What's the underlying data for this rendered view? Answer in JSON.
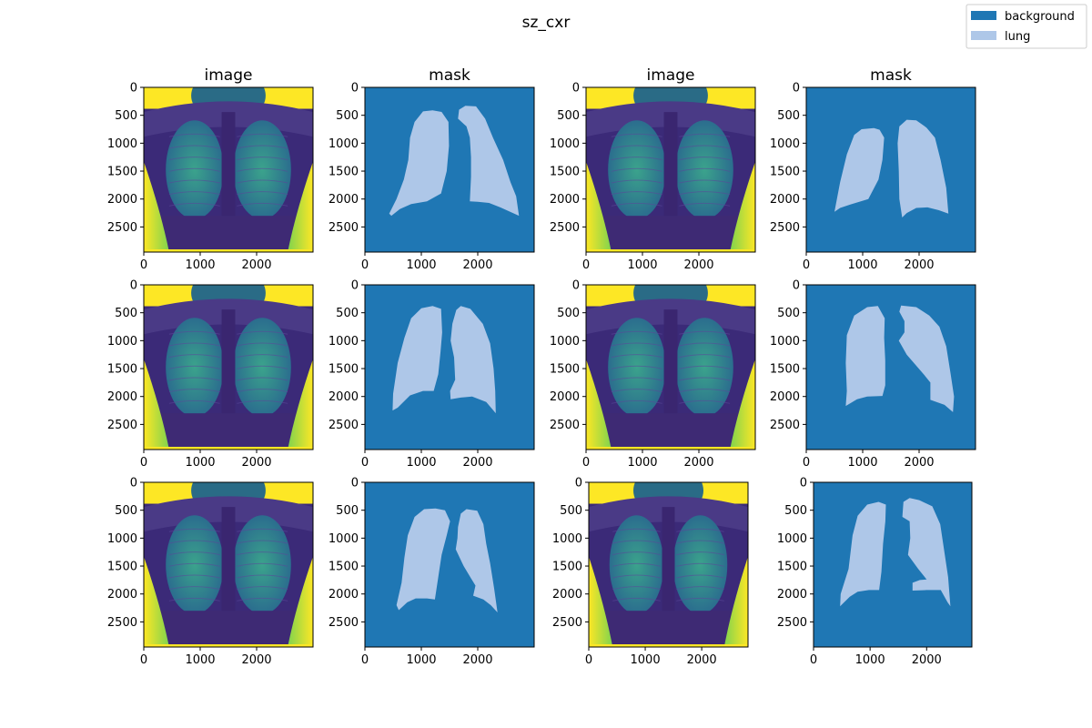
{
  "title": "sz_cxr",
  "legend": {
    "placement": "top-right",
    "entries": [
      {
        "label": "background",
        "color": "#1f77b4"
      },
      {
        "label": "lung",
        "color": "#aec7e8"
      }
    ]
  },
  "chart_data": {
    "type": "heatmap",
    "title": "sz_cxr",
    "grid": false,
    "x_ticks": [
      "0",
      "1000",
      "2000"
    ],
    "y_ticks": [
      "0",
      "500",
      "1000",
      "1500",
      "2000",
      "2500"
    ],
    "colors": {
      "background": "#1f77b4",
      "lung": "#aec7e8",
      "xray_dark": "#3b2a78",
      "xray_mid": "#2c7e8e",
      "xray_bright": "#fde725"
    },
    "panels": [
      {
        "row": 0,
        "col": 0,
        "kind": "image",
        "title": "image",
        "xlim": [
          0,
          3000
        ],
        "ylim": [
          2950,
          0
        ]
      },
      {
        "row": 0,
        "col": 1,
        "kind": "mask",
        "title": "mask",
        "xlim": [
          0,
          3000
        ],
        "ylim": [
          2950,
          0
        ],
        "left_lung": [
          [
            1200,
            410
          ],
          [
            1030,
            430
          ],
          [
            880,
            620
          ],
          [
            800,
            900
          ],
          [
            770,
            1300
          ],
          [
            690,
            1650
          ],
          [
            560,
            2000
          ],
          [
            430,
            2260
          ],
          [
            470,
            2300
          ],
          [
            620,
            2180
          ],
          [
            820,
            2090
          ],
          [
            1100,
            2040
          ],
          [
            1350,
            1900
          ],
          [
            1450,
            1500
          ],
          [
            1490,
            1050
          ],
          [
            1480,
            620
          ],
          [
            1360,
            440
          ]
        ],
        "right_lung": [
          [
            1780,
            330
          ],
          [
            1670,
            400
          ],
          [
            1650,
            560
          ],
          [
            1800,
            700
          ],
          [
            1860,
            900
          ],
          [
            1880,
            1250
          ],
          [
            1880,
            1600
          ],
          [
            1860,
            2040
          ],
          [
            2000,
            2050
          ],
          [
            2200,
            2070
          ],
          [
            2400,
            2150
          ],
          [
            2730,
            2300
          ],
          [
            2680,
            1950
          ],
          [
            2580,
            1700
          ],
          [
            2450,
            1300
          ],
          [
            2270,
            900
          ],
          [
            2130,
            560
          ],
          [
            1970,
            340
          ]
        ]
      },
      {
        "row": 0,
        "col": 2,
        "kind": "image",
        "title": "image",
        "xlim": [
          0,
          3000
        ],
        "ylim": [
          2950,
          0
        ]
      },
      {
        "row": 0,
        "col": 3,
        "kind": "mask",
        "title": "mask",
        "xlim": [
          0,
          3000
        ],
        "ylim": [
          2950,
          0
        ],
        "left_lung": [
          [
            1200,
            730
          ],
          [
            980,
            750
          ],
          [
            850,
            850
          ],
          [
            720,
            1200
          ],
          [
            600,
            1700
          ],
          [
            500,
            2230
          ],
          [
            600,
            2160
          ],
          [
            780,
            2100
          ],
          [
            1100,
            2000
          ],
          [
            1280,
            1650
          ],
          [
            1350,
            1300
          ],
          [
            1380,
            900
          ],
          [
            1300,
            760
          ]
        ],
        "right_lung": [
          [
            1780,
            580
          ],
          [
            1650,
            700
          ],
          [
            1620,
            1000
          ],
          [
            1640,
            1500
          ],
          [
            1650,
            2000
          ],
          [
            1700,
            2330
          ],
          [
            1780,
            2250
          ],
          [
            1950,
            2160
          ],
          [
            2150,
            2150
          ],
          [
            2350,
            2200
          ],
          [
            2520,
            2260
          ],
          [
            2480,
            1800
          ],
          [
            2380,
            1300
          ],
          [
            2280,
            900
          ],
          [
            2130,
            720
          ],
          [
            1950,
            590
          ]
        ]
      },
      {
        "row": 1,
        "col": 0,
        "kind": "image",
        "title": "",
        "xlim": [
          0,
          3000
        ],
        "ylim": [
          2950,
          0
        ]
      },
      {
        "row": 1,
        "col": 1,
        "kind": "mask",
        "title": "",
        "xlim": [
          0,
          3000
        ],
        "ylim": [
          2950,
          0
        ],
        "left_lung": [
          [
            1200,
            380
          ],
          [
            1000,
            420
          ],
          [
            820,
            600
          ],
          [
            700,
            950
          ],
          [
            580,
            1400
          ],
          [
            500,
            1950
          ],
          [
            490,
            2250
          ],
          [
            580,
            2200
          ],
          [
            800,
            1980
          ],
          [
            1030,
            1900
          ],
          [
            1220,
            1900
          ],
          [
            1300,
            1600
          ],
          [
            1340,
            1200
          ],
          [
            1370,
            850
          ],
          [
            1350,
            430
          ]
        ],
        "right_lung": [
          [
            1700,
            380
          ],
          [
            1620,
            450
          ],
          [
            1550,
            700
          ],
          [
            1520,
            1000
          ],
          [
            1580,
            1300
          ],
          [
            1600,
            1700
          ],
          [
            1510,
            1900
          ],
          [
            1520,
            2050
          ],
          [
            1700,
            2020
          ],
          [
            1900,
            2000
          ],
          [
            2150,
            2100
          ],
          [
            2320,
            2300
          ],
          [
            2310,
            1900
          ],
          [
            2280,
            1500
          ],
          [
            2220,
            1050
          ],
          [
            2090,
            700
          ],
          [
            1870,
            430
          ]
        ]
      },
      {
        "row": 1,
        "col": 2,
        "kind": "image",
        "title": "",
        "xlim": [
          0,
          3000
        ],
        "ylim": [
          2950,
          0
        ]
      },
      {
        "row": 1,
        "col": 3,
        "kind": "mask",
        "title": "",
        "xlim": [
          0,
          3000
        ],
        "ylim": [
          2950,
          0
        ],
        "left_lung": [
          [
            1270,
            380
          ],
          [
            1080,
            400
          ],
          [
            850,
            550
          ],
          [
            720,
            900
          ],
          [
            700,
            1400
          ],
          [
            720,
            1900
          ],
          [
            700,
            2170
          ],
          [
            900,
            2050
          ],
          [
            1080,
            2000
          ],
          [
            1350,
            1990
          ],
          [
            1400,
            1800
          ],
          [
            1400,
            1350
          ],
          [
            1380,
            950
          ],
          [
            1390,
            600
          ]
        ],
        "right_lung": [
          [
            1680,
            370
          ],
          [
            1650,
            480
          ],
          [
            1740,
            650
          ],
          [
            1740,
            850
          ],
          [
            1640,
            1000
          ],
          [
            1780,
            1250
          ],
          [
            2080,
            1600
          ],
          [
            2200,
            1750
          ],
          [
            2200,
            2060
          ],
          [
            2450,
            2150
          ],
          [
            2600,
            2280
          ],
          [
            2620,
            2000
          ],
          [
            2560,
            1600
          ],
          [
            2480,
            1100
          ],
          [
            2360,
            750
          ],
          [
            2180,
            550
          ],
          [
            1950,
            400
          ]
        ]
      },
      {
        "row": 2,
        "col": 0,
        "kind": "image",
        "title": "",
        "xlim": [
          0,
          3000
        ],
        "ylim": [
          2950,
          0
        ]
      },
      {
        "row": 2,
        "col": 1,
        "kind": "mask",
        "title": "",
        "xlim": [
          0,
          3000
        ],
        "ylim": [
          2950,
          0
        ],
        "left_lung": [
          [
            1250,
            470
          ],
          [
            1050,
            480
          ],
          [
            880,
            620
          ],
          [
            760,
            950
          ],
          [
            700,
            1350
          ],
          [
            650,
            1800
          ],
          [
            560,
            2200
          ],
          [
            600,
            2290
          ],
          [
            750,
            2150
          ],
          [
            900,
            2080
          ],
          [
            1100,
            2080
          ],
          [
            1240,
            2100
          ],
          [
            1300,
            1700
          ],
          [
            1360,
            1300
          ],
          [
            1450,
            950
          ],
          [
            1510,
            700
          ],
          [
            1420,
            500
          ]
        ],
        "right_lung": [
          [
            1800,
            480
          ],
          [
            1700,
            560
          ],
          [
            1650,
            800
          ],
          [
            1640,
            1000
          ],
          [
            1610,
            1200
          ],
          [
            1750,
            1500
          ],
          [
            1880,
            1720
          ],
          [
            1960,
            1850
          ],
          [
            1920,
            2030
          ],
          [
            2100,
            2100
          ],
          [
            2230,
            2200
          ],
          [
            2350,
            2330
          ],
          [
            2290,
            1900
          ],
          [
            2220,
            1450
          ],
          [
            2150,
            1100
          ],
          [
            2100,
            750
          ],
          [
            1990,
            510
          ]
        ]
      },
      {
        "row": 2,
        "col": 2,
        "kind": "image",
        "title": "",
        "xlim": [
          0,
          2820
        ],
        "ylim": [
          2950,
          0
        ]
      },
      {
        "row": 2,
        "col": 3,
        "kind": "mask",
        "title": "",
        "xlim": [
          0,
          2800
        ],
        "ylim": [
          2950,
          0
        ],
        "left_lung": [
          [
            1150,
            350
          ],
          [
            950,
            400
          ],
          [
            780,
            600
          ],
          [
            690,
            950
          ],
          [
            620,
            1550
          ],
          [
            480,
            2000
          ],
          [
            470,
            2220
          ],
          [
            640,
            2050
          ],
          [
            780,
            1960
          ],
          [
            980,
            1930
          ],
          [
            1160,
            1930
          ],
          [
            1200,
            1600
          ],
          [
            1230,
            1100
          ],
          [
            1270,
            700
          ],
          [
            1280,
            400
          ]
        ],
        "right_lung": [
          [
            1700,
            280
          ],
          [
            1590,
            350
          ],
          [
            1570,
            620
          ],
          [
            1700,
            700
          ],
          [
            1710,
            1000
          ],
          [
            1670,
            1300
          ],
          [
            1850,
            1550
          ],
          [
            2000,
            1740
          ],
          [
            1880,
            1750
          ],
          [
            1750,
            1800
          ],
          [
            1750,
            1940
          ],
          [
            2000,
            1930
          ],
          [
            2250,
            1930
          ],
          [
            2370,
            2150
          ],
          [
            2420,
            2220
          ],
          [
            2380,
            1700
          ],
          [
            2300,
            1150
          ],
          [
            2240,
            750
          ],
          [
            2100,
            430
          ],
          [
            1870,
            320
          ]
        ]
      }
    ]
  }
}
